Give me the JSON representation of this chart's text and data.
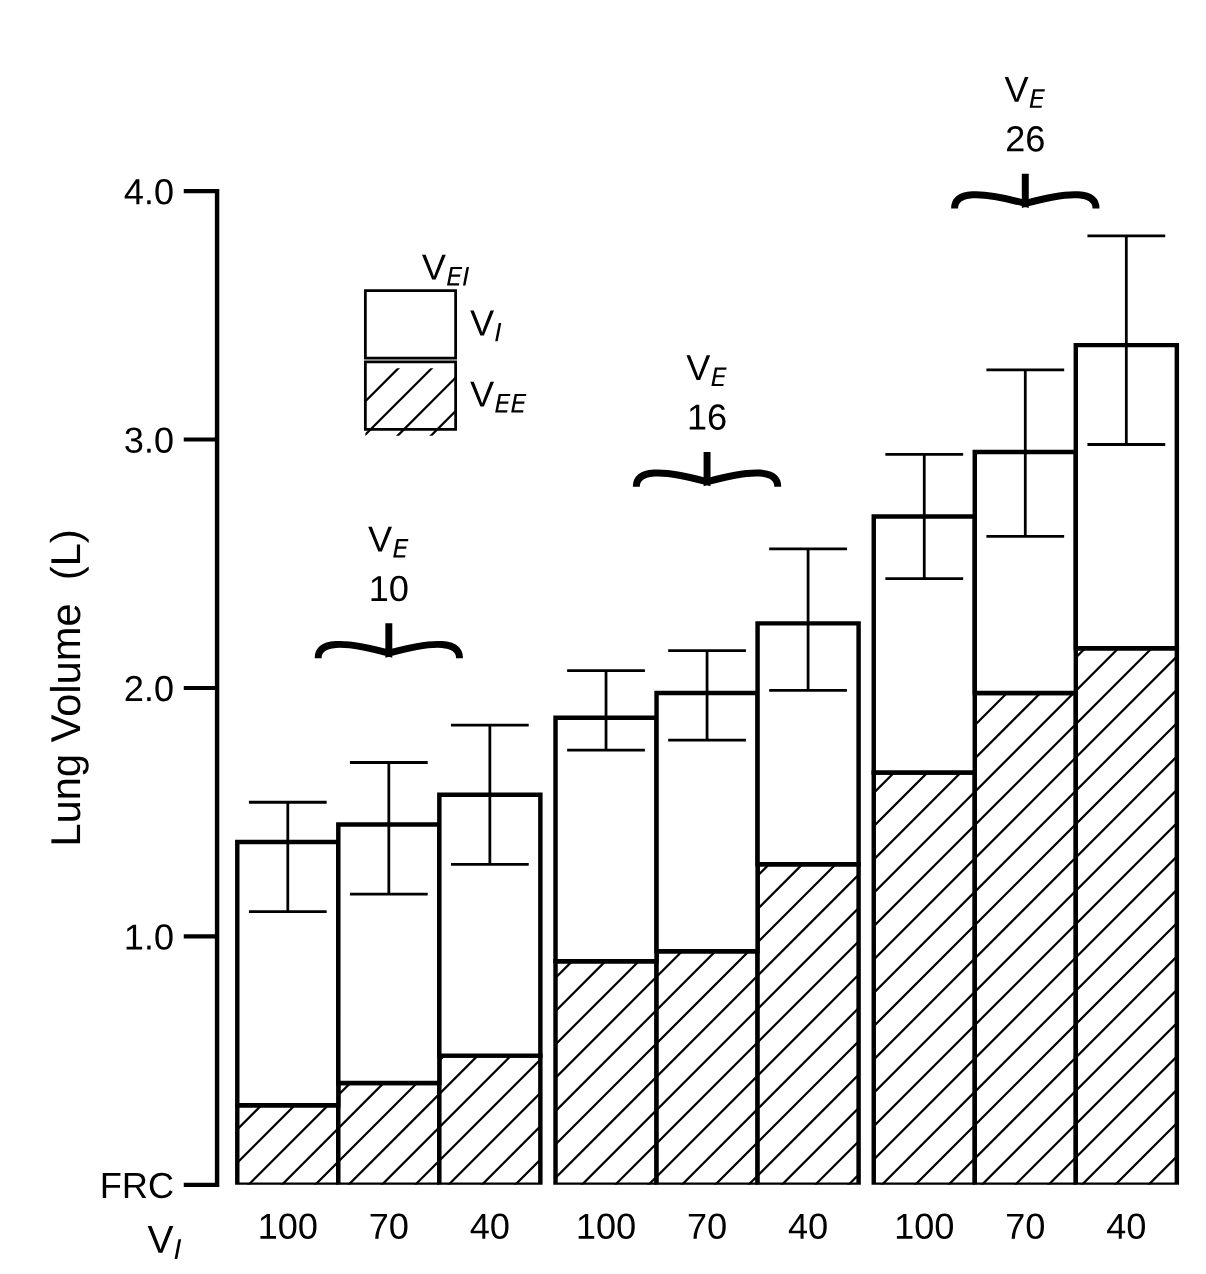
{
  "chart_data": {
    "type": "bar",
    "stacked": true,
    "ylabel": "Lung Volume  (L)",
    "xlabel": "V$_{I}$",
    "legend_title": "V$_{EI}$",
    "categories": [
      "100",
      "70",
      "40",
      "100",
      "70",
      "40",
      "100",
      "70",
      "40"
    ],
    "series": [
      {
        "name": "V$_{EE}$",
        "color": "#ffffff",
        "values": [
          0.32,
          0.41,
          0.52,
          0.9,
          0.94,
          1.29,
          1.66,
          1.98,
          2.16
        ]
      },
      {
        "name": "V$_{I}$",
        "color": "#ffffff",
        "values": [
          1.06,
          1.04,
          1.05,
          0.98,
          1.04,
          0.97,
          1.03,
          0.97,
          1.22
        ],
        "errors": [
          [
            1.1,
            1.54
          ],
          [
            1.17,
            1.7
          ],
          [
            1.29,
            1.85
          ],
          [
            1.75,
            2.07
          ],
          [
            1.79,
            2.15
          ],
          [
            1.99,
            2.56
          ],
          [
            2.44,
            2.94
          ],
          [
            2.61,
            3.28
          ],
          [
            2.98,
            3.82
          ]
        ]
      }
    ],
    "ylim": [
      0,
      4.0
    ],
    "yticks": [
      {
        "value": 0,
        "label": "FRC"
      },
      {
        "value": 1,
        "label": "1.0"
      },
      {
        "value": 2,
        "label": "2.0"
      },
      {
        "value": 3,
        "label": "3.0"
      },
      {
        "value": 4,
        "label": "4.0"
      }
    ],
    "grid": false,
    "legend": "top left",
    "annotations": [
      "V$_{E}$\n10",
      "V$_{E}$\n16",
      "V$_{E}$\n26"
    ]
  }
}
